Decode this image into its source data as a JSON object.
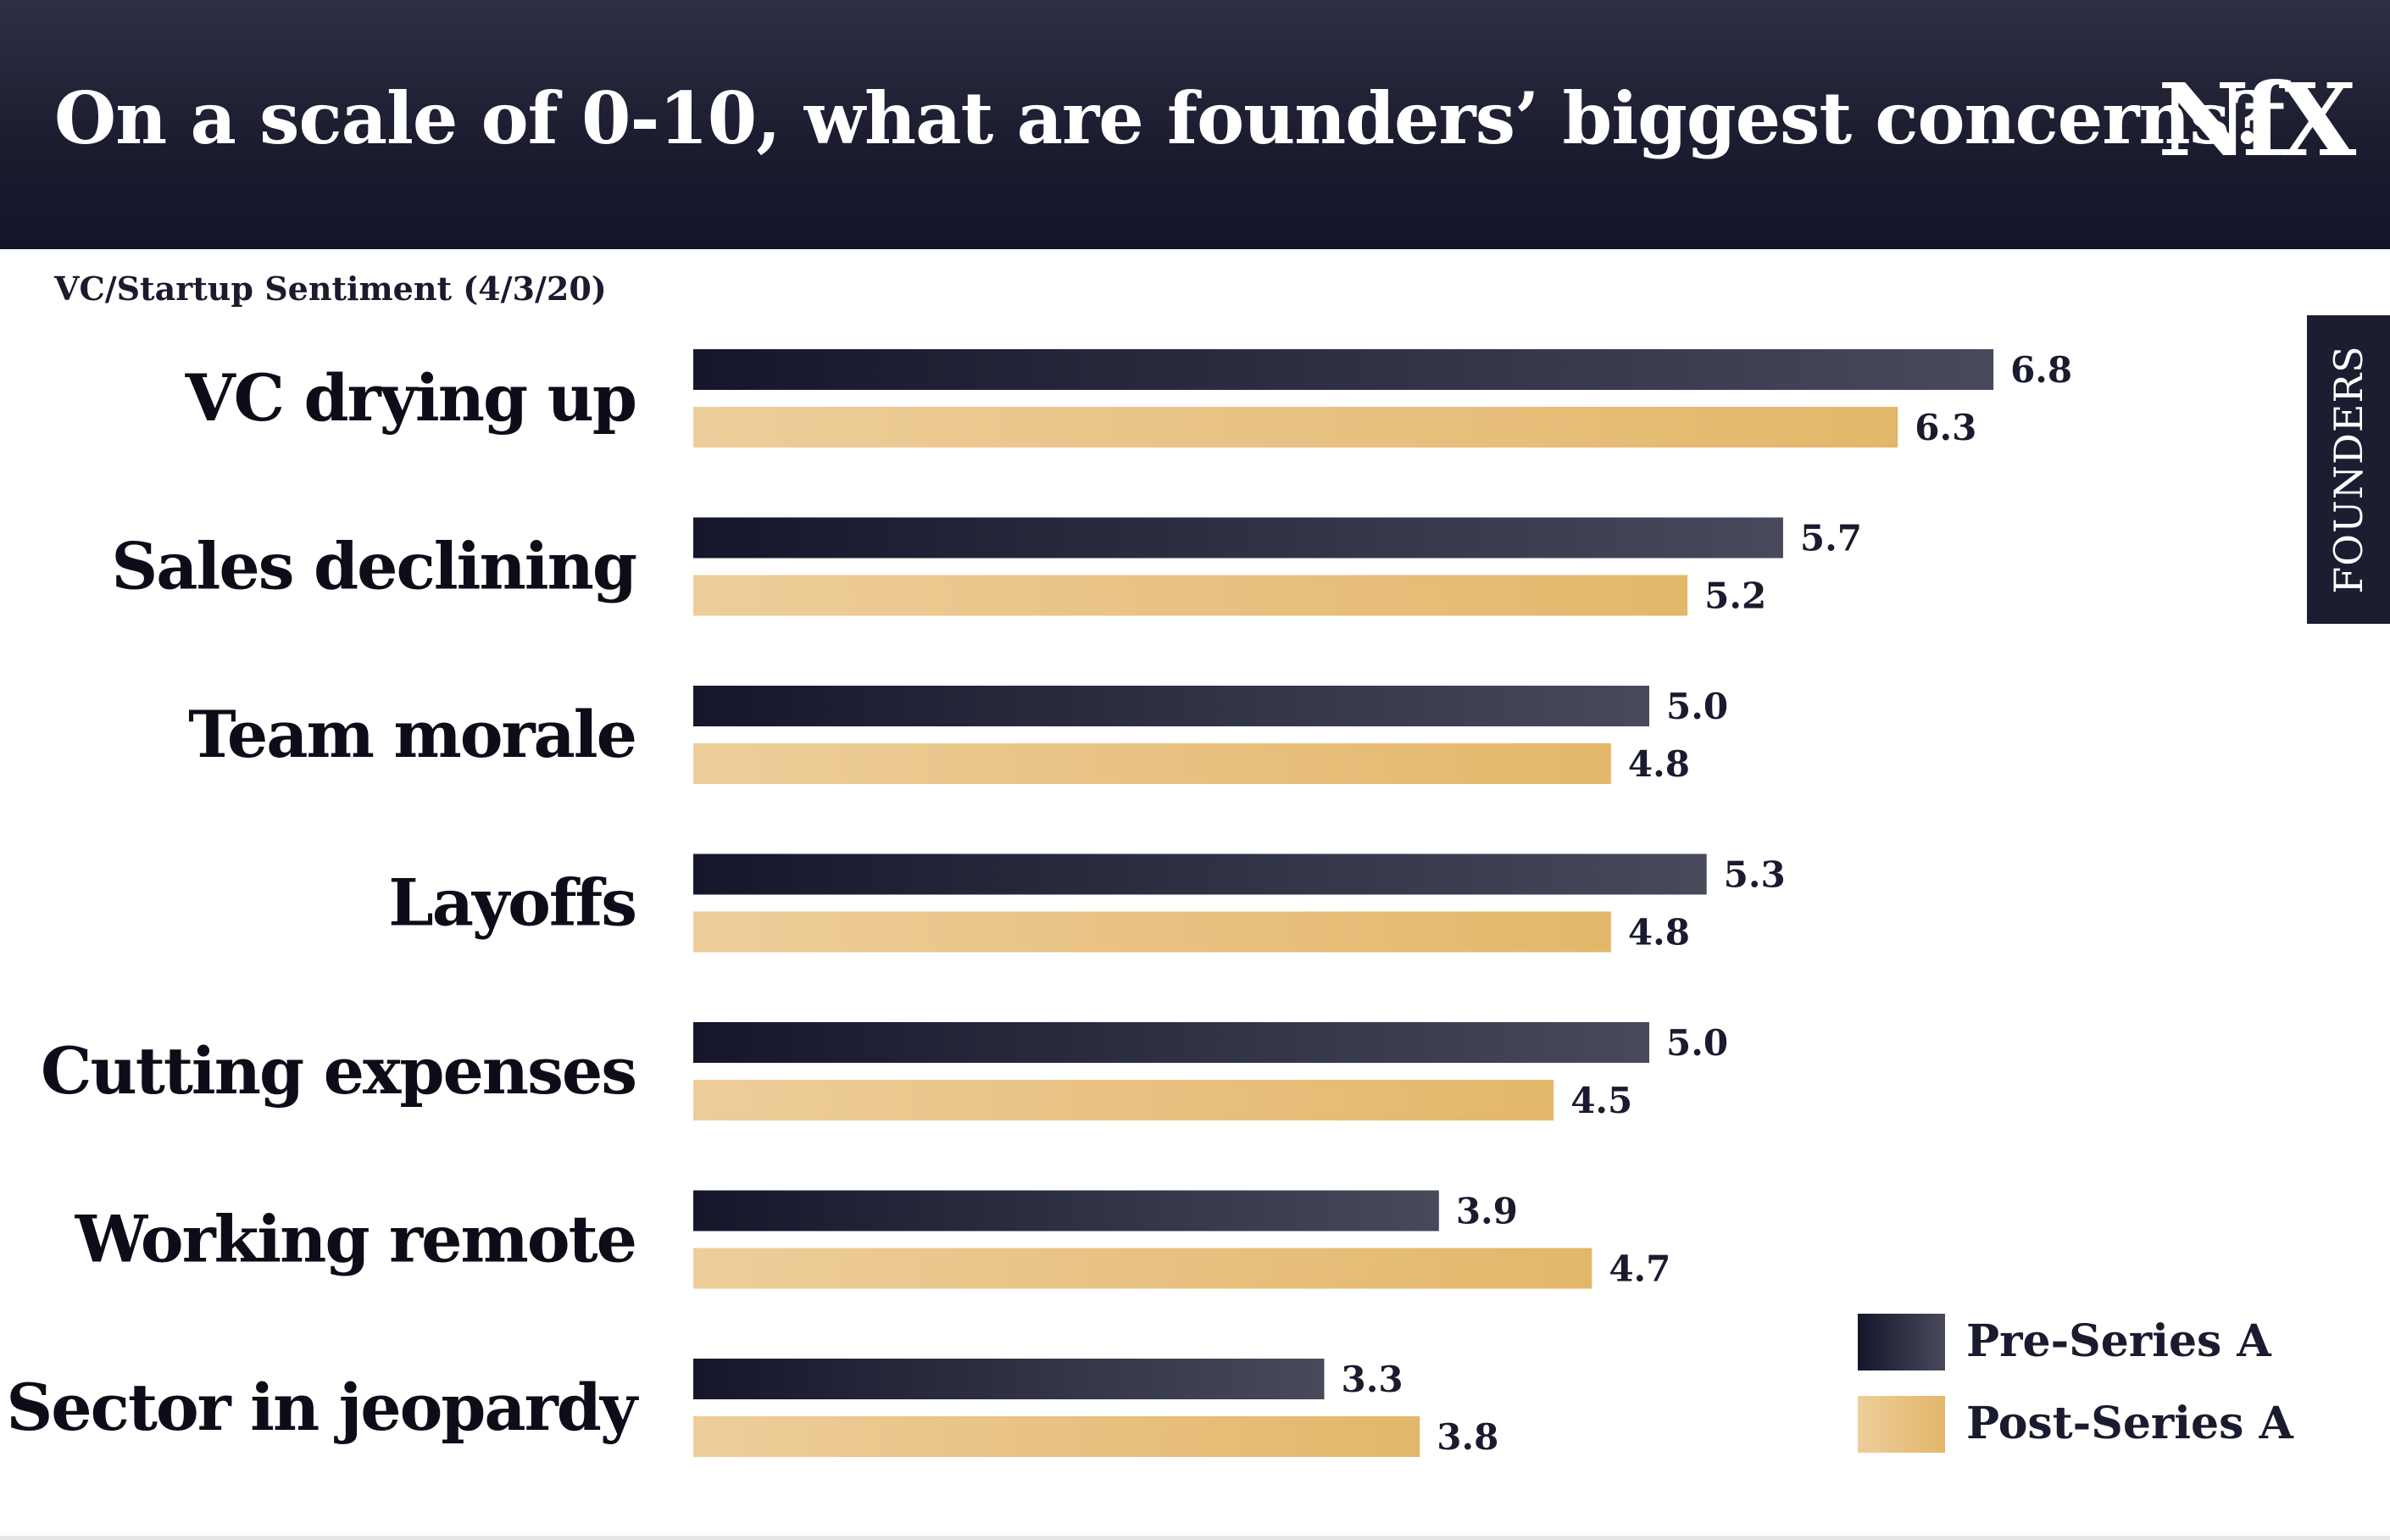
{
  "header": {
    "title": "On a scale of 0-10, what are founders’ biggest concerns?",
    "logo_text": "NfX"
  },
  "side_tab": {
    "label": "FOUNDERS"
  },
  "colors": {
    "header_bg": "#1c1d30",
    "pre_series_start": "#15162b",
    "pre_series_end": "#484a5c",
    "post_series_start": "#edcd9a",
    "post_series_end": "#e3b76a",
    "text_dark": "#0d0d1a"
  },
  "chart_data": {
    "type": "bar",
    "orientation": "horizontal",
    "subtitle": "VC/Startup Sentiment (4/3/20)",
    "title": "On a scale of 0-10, what are founders’ biggest concerns?",
    "xlabel": "",
    "ylabel": "",
    "xlim": [
      0,
      10
    ],
    "grid": false,
    "legend_position": "bottom-right",
    "categories": [
      "VC drying up",
      "Sales declining",
      "Team morale",
      "Layoffs",
      "Cutting expenses",
      "Working remote",
      "Sector in jeopardy"
    ],
    "series": [
      {
        "name": "Pre-Series A",
        "values": [
          6.8,
          5.7,
          5.0,
          5.3,
          5.0,
          3.9,
          3.3
        ],
        "labels": [
          "6.8",
          "5.7",
          "5.0",
          "5.3",
          "5.0",
          "3.9",
          "3.3"
        ]
      },
      {
        "name": "Post-Series A",
        "values": [
          6.3,
          5.2,
          4.8,
          4.8,
          4.5,
          4.7,
          3.8
        ],
        "labels": [
          "6.3",
          "5.2",
          "4.8",
          "4.8",
          "4.5",
          "4.7",
          "3.8"
        ]
      }
    ]
  }
}
